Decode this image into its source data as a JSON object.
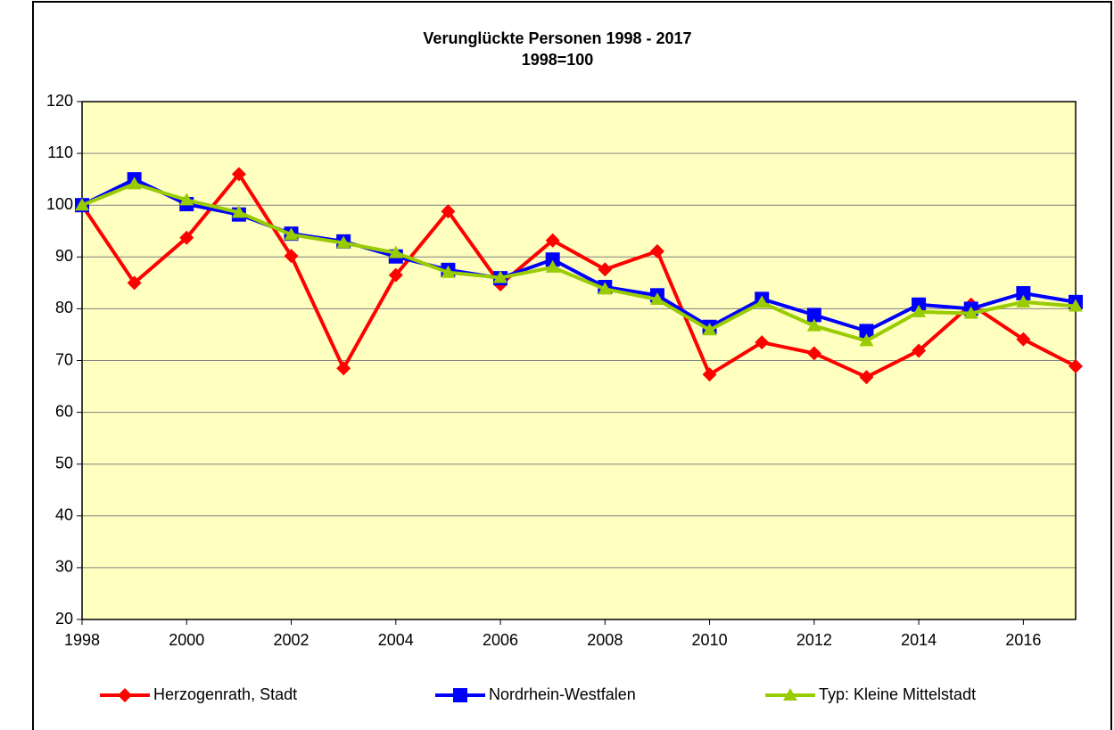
{
  "chart_data": {
    "type": "line",
    "title": "Verunglückte Personen 1998 - 2017",
    "subtitle": "1998=100",
    "x": [
      1998,
      1999,
      2000,
      2001,
      2002,
      2003,
      2004,
      2005,
      2006,
      2007,
      2008,
      2009,
      2010,
      2011,
      2012,
      2013,
      2014,
      2015,
      2016,
      2017
    ],
    "series": [
      {
        "name": "Herzogenrath, Stadt",
        "color": "#ff0000",
        "marker": "diamond",
        "values": [
          100,
          85,
          93.7,
          106,
          90.2,
          68.5,
          86.5,
          98.8,
          84.7,
          93.2,
          87.6,
          91.1,
          67.3,
          73.5,
          71.4,
          66.8,
          71.9,
          80.8,
          74.1,
          68.9
        ]
      },
      {
        "name": "Nordrhein-Westfalen",
        "color": "#0000ff",
        "marker": "square",
        "values": [
          100,
          105,
          100.2,
          98.2,
          94.5,
          93,
          90.1,
          87.5,
          85.9,
          89.5,
          84.2,
          82.6,
          76.5,
          81.9,
          78.8,
          75.7,
          80.8,
          80,
          83,
          81.3
        ]
      },
      {
        "name": "Typ: Kleine Mittelstadt",
        "color": "#99cc00",
        "marker": "triangle",
        "values": [
          100,
          104.1,
          101,
          98.6,
          94.3,
          92.7,
          90.8,
          87,
          86,
          88,
          83.8,
          81.8,
          75.9,
          81.2,
          76.7,
          73.8,
          79.4,
          79.1,
          81.3,
          80.5
        ]
      }
    ],
    "xlim": [
      1998,
      2017
    ],
    "xticks": [
      1998,
      2000,
      2002,
      2004,
      2006,
      2008,
      2010,
      2012,
      2014,
      2016
    ],
    "ylim": [
      20,
      120
    ],
    "yticks": [
      20,
      30,
      40,
      50,
      60,
      70,
      80,
      90,
      100,
      110,
      120
    ],
    "grid": true,
    "legend": "bottom",
    "background": "#ffffc0"
  }
}
